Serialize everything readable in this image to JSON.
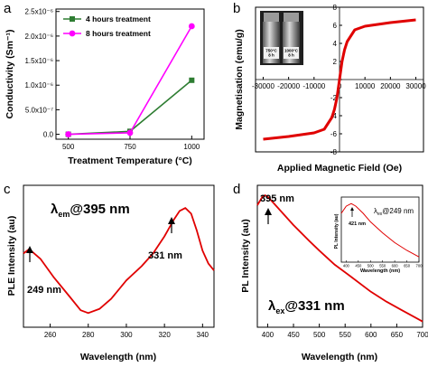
{
  "panel_labels": [
    "a",
    "b",
    "c",
    "d"
  ],
  "colors": {
    "green": "#2e7d32",
    "magenta": "#ff00ff",
    "red": "#e00000",
    "axis": "#000000"
  },
  "chart_data": [
    {
      "panel": "a",
      "type": "line",
      "xlabel": "Treatment Temperature (°C)",
      "ylabel": "Conductivity (Sm⁻¹)",
      "xlim": [
        450,
        1050
      ],
      "ylim": [
        -1e-07,
        2.55e-06
      ],
      "x_ticks": [
        500,
        750,
        1000
      ],
      "x_tick_labels": [
        "500",
        "750",
        "1000"
      ],
      "y_ticks": [
        0,
        5e-07,
        1e-06,
        1.5e-06,
        2e-06,
        2.5e-06
      ],
      "y_tick_labels": [
        "0.0",
        "5.0x10⁻⁷",
        "1.0x10⁻⁶",
        "1.5x10⁻⁶",
        "2.0x10⁻⁶",
        "2.5x10⁻⁶"
      ],
      "x": [
        500,
        750,
        1000
      ],
      "series": [
        {
          "name": "4 hours treatment",
          "color": "#2e7d32",
          "marker": "square",
          "values": [
            0,
            6e-08,
            1.1e-06
          ]
        },
        {
          "name": "8 hours treatment",
          "color": "#ff00ff",
          "marker": "circle",
          "values": [
            0,
            3e-08,
            2.2e-06
          ]
        }
      ],
      "legend": "top-left"
    },
    {
      "panel": "b",
      "type": "line",
      "xlabel": "Applied Magnetic Field (Oe)",
      "ylabel": "Magnetisation (emu/g)",
      "xlim": [
        -33000,
        33000
      ],
      "ylim": [
        -8,
        8
      ],
      "x_ticks": [
        -30000,
        -20000,
        -10000,
        0,
        10000,
        20000,
        30000
      ],
      "x_tick_labels": [
        "-30000",
        "-20000",
        "-10000",
        "0",
        "10000",
        "20000",
        "30000"
      ],
      "y_ticks": [
        -8,
        -6,
        -4,
        -2,
        0,
        2,
        4,
        6,
        8
      ],
      "y_tick_labels": [
        "-8",
        "-6",
        "-4",
        "-2",
        "0",
        "2",
        "4",
        "6",
        "8"
      ],
      "series": [
        {
          "color": "#e00000",
          "x": [
            -30000,
            -20000,
            -10000,
            -6000,
            -3000,
            -2000,
            -1000,
            -500,
            0,
            500,
            1000,
            2000,
            3000,
            6000,
            10000,
            20000,
            30000
          ],
          "values": [
            -6.6,
            -6.3,
            -5.9,
            -5.5,
            -4.2,
            -3.3,
            -2.0,
            -1.0,
            0,
            1.0,
            2.0,
            3.3,
            4.2,
            5.5,
            5.9,
            6.3,
            6.6
          ]
        }
      ],
      "inset_labels": [
        "750°C\n8 h",
        "1000°C\n8 h"
      ]
    },
    {
      "panel": "c",
      "type": "line",
      "xlabel": "Wavelength (nm)",
      "ylabel": "PLE Intensity (au)",
      "xlim": [
        246,
        346
      ],
      "ylim": [
        0,
        1
      ],
      "x_ticks": [
        260,
        280,
        300,
        320,
        340
      ],
      "x_tick_labels": [
        "260",
        "280",
        "300",
        "320",
        "340"
      ],
      "series": [
        {
          "color": "#e00000",
          "x": [
            246,
            249,
            255,
            262,
            270,
            276,
            280,
            286,
            292,
            300,
            308,
            314,
            320,
            325,
            328,
            331,
            334,
            337,
            340,
            343,
            346
          ],
          "values": [
            0.52,
            0.55,
            0.48,
            0.35,
            0.22,
            0.12,
            0.1,
            0.13,
            0.2,
            0.33,
            0.43,
            0.52,
            0.64,
            0.76,
            0.82,
            0.84,
            0.8,
            0.68,
            0.54,
            0.45,
            0.4
          ]
        }
      ],
      "annotations": [
        "λ",
        "em",
        "@395 nm",
        "331 nm",
        "249 nm"
      ]
    },
    {
      "panel": "d",
      "type": "line",
      "xlabel": "Wavelength (nm)",
      "ylabel": "PL  Intensity (au)",
      "xlim": [
        380,
        700
      ],
      "ylim": [
        0,
        1
      ],
      "x_ticks": [
        400,
        450,
        500,
        550,
        600,
        650,
        700
      ],
      "x_tick_labels": [
        "400",
        "450",
        "500",
        "550",
        "600",
        "650",
        "700"
      ],
      "series": [
        {
          "color": "#e00000",
          "x": [
            380,
            390,
            395,
            400,
            410,
            430,
            450,
            480,
            500,
            530,
            560,
            600,
            630,
            660,
            690,
            700
          ],
          "values": [
            0.86,
            0.92,
            0.93,
            0.92,
            0.88,
            0.8,
            0.72,
            0.61,
            0.54,
            0.44,
            0.36,
            0.25,
            0.18,
            0.12,
            0.06,
            0.04
          ]
        }
      ],
      "annotations": [
        "395 nm",
        "λ",
        "ex",
        "@331 nm"
      ],
      "inset": {
        "xlabel": "Wavelength (nm)",
        "ylabel": "PL  Intensity (au)",
        "x_tick_labels": [
          "400",
          "450",
          "500",
          "550",
          "600",
          "650",
          "700"
        ],
        "annotations": [
          "λ",
          "ex",
          "@249 nm",
          "421 nm"
        ],
        "x": [
          380,
          400,
          421,
          440,
          470,
          500,
          550,
          600,
          650,
          700
        ],
        "values": [
          0.75,
          0.86,
          0.9,
          0.86,
          0.75,
          0.62,
          0.45,
          0.3,
          0.18,
          0.08
        ]
      }
    }
  ]
}
